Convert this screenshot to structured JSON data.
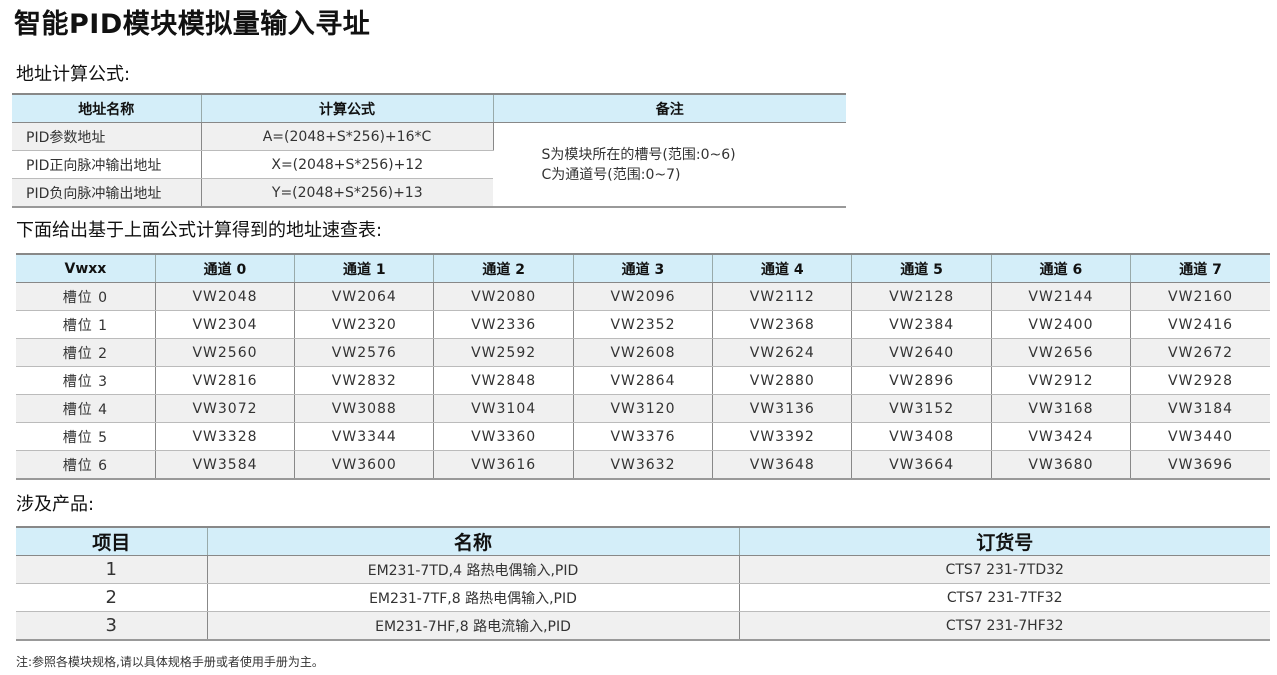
{
  "title": "智能PID模块模拟量输入寻址",
  "section1": {
    "heading": "地址计算公式:",
    "headers": [
      "地址名称",
      "计算公式",
      "备注"
    ],
    "rows": [
      {
        "name": "PID参数地址",
        "formula": "A=(2048+S*256)+16*C"
      },
      {
        "name": "PID正向脉冲输出地址",
        "formula": "X=(2048+S*256)+12"
      },
      {
        "name": "PID负向脉冲输出地址",
        "formula": "Y=(2048+S*256)+13"
      }
    ],
    "note_lines": [
      "S为模块所在的槽号(范围:0~6)",
      "C为通道号(范围:0~7)"
    ]
  },
  "section2": {
    "heading": "下面给出基于上面公式计算得到的地址速查表:",
    "headers": [
      "Vwxx",
      "通道 0",
      "通道 1",
      "通道 2",
      "通道 3",
      "通道 4",
      "通道 5",
      "通道 6",
      "通道 7"
    ],
    "rows": [
      [
        "槽位 0",
        "VW2048",
        "VW2064",
        "VW2080",
        "VW2096",
        "VW2112",
        "VW2128",
        "VW2144",
        "VW2160"
      ],
      [
        "槽位 1",
        "VW2304",
        "VW2320",
        "VW2336",
        "VW2352",
        "VW2368",
        "VW2384",
        "VW2400",
        "VW2416"
      ],
      [
        "槽位 2",
        "VW2560",
        "VW2576",
        "VW2592",
        "VW2608",
        "VW2624",
        "VW2640",
        "VW2656",
        "VW2672"
      ],
      [
        "槽位 3",
        "VW2816",
        "VW2832",
        "VW2848",
        "VW2864",
        "VW2880",
        "VW2896",
        "VW2912",
        "VW2928"
      ],
      [
        "槽位 4",
        "VW3072",
        "VW3088",
        "VW3104",
        "VW3120",
        "VW3136",
        "VW3152",
        "VW3168",
        "VW3184"
      ],
      [
        "槽位 5",
        "VW3328",
        "VW3344",
        "VW3360",
        "VW3376",
        "VW3392",
        "VW3408",
        "VW3424",
        "VW3440"
      ],
      [
        "槽位 6",
        "VW3584",
        "VW3600",
        "VW3616",
        "VW3632",
        "VW3648",
        "VW3664",
        "VW3680",
        "VW3696"
      ]
    ]
  },
  "section3": {
    "heading": "涉及产品:",
    "headers": [
      "项目",
      "名称",
      "订货号"
    ],
    "rows": [
      [
        "1",
        "EM231-7TD,4 路热电偶输入,PID",
        "CTS7 231-7TD32"
      ],
      [
        "2",
        "EM231-7TF,8 路热电偶输入,PID",
        "CTS7 231-7TF32"
      ],
      [
        "3",
        "EM231-7HF,8 路电流输入,PID",
        "CTS7 231-7HF32"
      ]
    ]
  },
  "footnote": "注:参照各模块规格,请以具体规格手册或者使用手册为主。",
  "colors": {
    "header_bg": "#d4eef9",
    "stripe_bg": "#f0f0f0"
  }
}
